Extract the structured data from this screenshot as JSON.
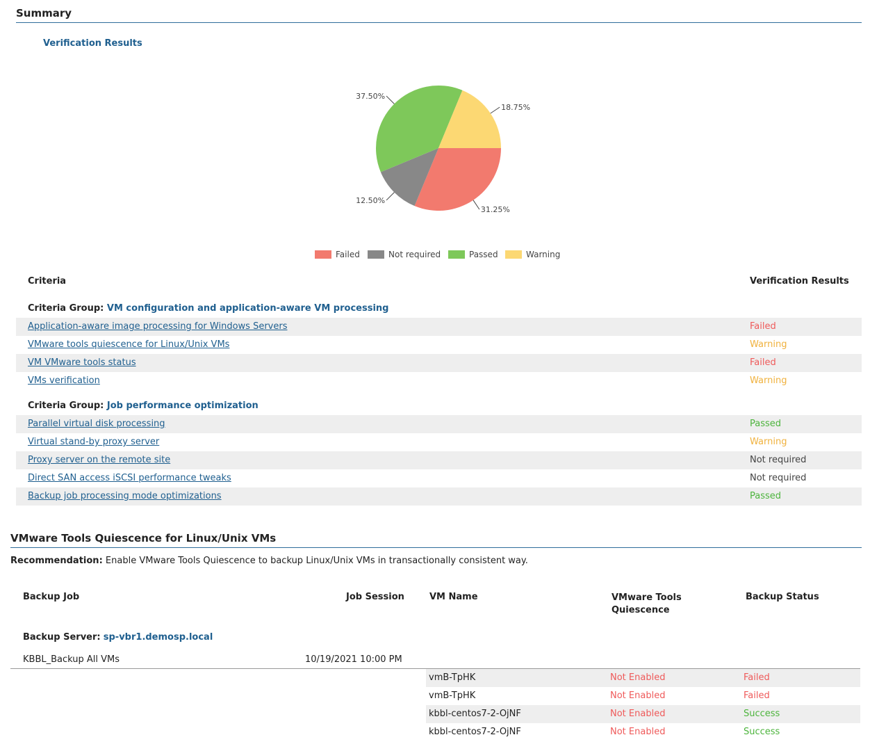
{
  "summary": {
    "title": "Summary",
    "subtitle": "Verification Results"
  },
  "chart_data": {
    "type": "pie",
    "title": "",
    "slices": [
      {
        "name": "Failed",
        "value": 31.25,
        "label": "31.25%",
        "color": "#f27a6e"
      },
      {
        "name": "Not required",
        "value": 12.5,
        "label": "12.50%",
        "color": "#888888"
      },
      {
        "name": "Passed",
        "value": 37.5,
        "label": "37.50%",
        "color": "#7ec85a"
      },
      {
        "name": "Warning",
        "value": 18.75,
        "label": "18.75%",
        "color": "#fcd873"
      }
    ],
    "legend_position": "bottom"
  },
  "criteria_table": {
    "col_criteria": "Criteria",
    "col_results": "Verification Results",
    "group_prefix": "Criteria Group:",
    "groups": [
      {
        "name": "VM configuration and application-aware VM processing",
        "rows": [
          {
            "criteria": "Application-aware image processing for Windows Servers",
            "result": "Failed"
          },
          {
            "criteria": "VMware tools quiescence for Linux/Unix VMs",
            "result": "Warning"
          },
          {
            "criteria": "VM VMware tools status",
            "result": "Failed"
          },
          {
            "criteria": "VMs verification",
            "result": "Warning"
          }
        ]
      },
      {
        "name": "Job performance optimization",
        "rows": [
          {
            "criteria": "Parallel virtual disk processing",
            "result": "Passed"
          },
          {
            "criteria": "Virtual stand-by proxy server",
            "result": "Warning"
          },
          {
            "criteria": "Proxy server on the remote site",
            "result": "Not required"
          },
          {
            "criteria": "Direct SAN access iSCSI performance tweaks",
            "result": "Not required"
          },
          {
            "criteria": "Backup job processing mode optimizations",
            "result": "Passed"
          }
        ]
      }
    ]
  },
  "quiescence": {
    "title": "VMware Tools Quiescence for Linux/Unix VMs",
    "recommendation_label": "Recommendation:",
    "recommendation_text": "Enable VMware Tools Quiescence to backup Linux/Unix VMs in transactionally consistent way.",
    "col_backup_job": "Backup Job",
    "col_job_session": "Job Session",
    "col_vm_name": "VM Name",
    "col_quiescence_1": "VMware Tools",
    "col_quiescence_2": "Quiescence",
    "col_backup_status": "Backup Status",
    "server_label": "Backup Server:",
    "server_name": "sp-vbr1.demosp.local",
    "job_name": "KBBL_Backup All VMs",
    "job_session": "10/19/2021 10:00 PM",
    "vms": [
      {
        "name": "vmB-TpHK",
        "quiescence": "Not Enabled",
        "status": "Failed"
      },
      {
        "name": "vmB-TpHK",
        "quiescence": "Not Enabled",
        "status": "Failed"
      },
      {
        "name": "kbbl-centos7-2-OjNF",
        "quiescence": "Not Enabled",
        "status": "Success"
      },
      {
        "name": "kbbl-centos7-2-OjNF",
        "quiescence": "Not Enabled",
        "status": "Success"
      }
    ]
  }
}
